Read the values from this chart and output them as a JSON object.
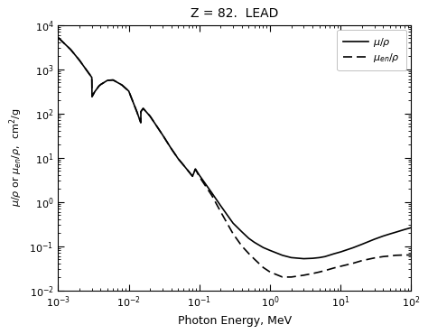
{
  "title": "Z = 82.  LEAD",
  "xlabel": "Photon Energy, MeV",
  "xlim": [
    0.001,
    100.0
  ],
  "ylim": [
    0.01,
    10000.0
  ],
  "background_color": "#ffffff",
  "mu_rho": {
    "x": [
      0.001,
      0.0015,
      0.002,
      0.003,
      0.00302,
      0.0033,
      0.0038,
      0.004,
      0.005,
      0.006,
      0.008,
      0.01,
      0.013,
      0.0148,
      0.01486,
      0.016,
      0.02,
      0.03,
      0.04,
      0.05,
      0.06,
      0.08,
      0.0876,
      0.088,
      0.1,
      0.15,
      0.2,
      0.3,
      0.4,
      0.5,
      0.6,
      0.8,
      1.0,
      1.5,
      2.0,
      3.0,
      4.0,
      5.0,
      6.0,
      8.0,
      10.0,
      15.0,
      20.0,
      30.0,
      40.0,
      50.0,
      60.0,
      80.0,
      100.0
    ],
    "y": [
      5200,
      2800,
      1600,
      650,
      240,
      310,
      420,
      450,
      560,
      570,
      440,
      320,
      110,
      62,
      110,
      130,
      87,
      33,
      16,
      9.5,
      6.7,
      3.8,
      5.5,
      5.5,
      4.0,
      1.6,
      0.82,
      0.33,
      0.21,
      0.15,
      0.122,
      0.093,
      0.08,
      0.062,
      0.055,
      0.052,
      0.053,
      0.055,
      0.058,
      0.067,
      0.074,
      0.092,
      0.11,
      0.143,
      0.169,
      0.189,
      0.206,
      0.237,
      0.262
    ]
  },
  "mu_en_rho": {
    "x": [
      0.001,
      0.0015,
      0.002,
      0.003,
      0.00302,
      0.0033,
      0.0038,
      0.004,
      0.005,
      0.006,
      0.008,
      0.01,
      0.013,
      0.0148,
      0.01486,
      0.016,
      0.02,
      0.03,
      0.04,
      0.05,
      0.06,
      0.08,
      0.0876,
      0.088,
      0.1,
      0.15,
      0.2,
      0.3,
      0.4,
      0.5,
      0.6,
      0.8,
      1.0,
      1.5,
      2.0,
      3.0,
      4.0,
      5.0,
      6.0,
      8.0,
      10.0,
      15.0,
      20.0,
      30.0,
      40.0,
      50.0,
      60.0,
      80.0,
      100.0
    ],
    "y": [
      5200,
      2800,
      1600,
      650,
      240,
      310,
      420,
      450,
      560,
      570,
      440,
      320,
      110,
      62,
      110,
      130,
      87,
      33,
      16,
      9.5,
      6.7,
      3.8,
      5.5,
      5.5,
      3.7,
      1.4,
      0.6,
      0.19,
      0.1,
      0.068,
      0.051,
      0.033,
      0.026,
      0.02,
      0.02,
      0.022,
      0.024,
      0.026,
      0.028,
      0.032,
      0.035,
      0.041,
      0.047,
      0.054,
      0.058,
      0.06,
      0.062,
      0.063,
      0.063
    ]
  }
}
